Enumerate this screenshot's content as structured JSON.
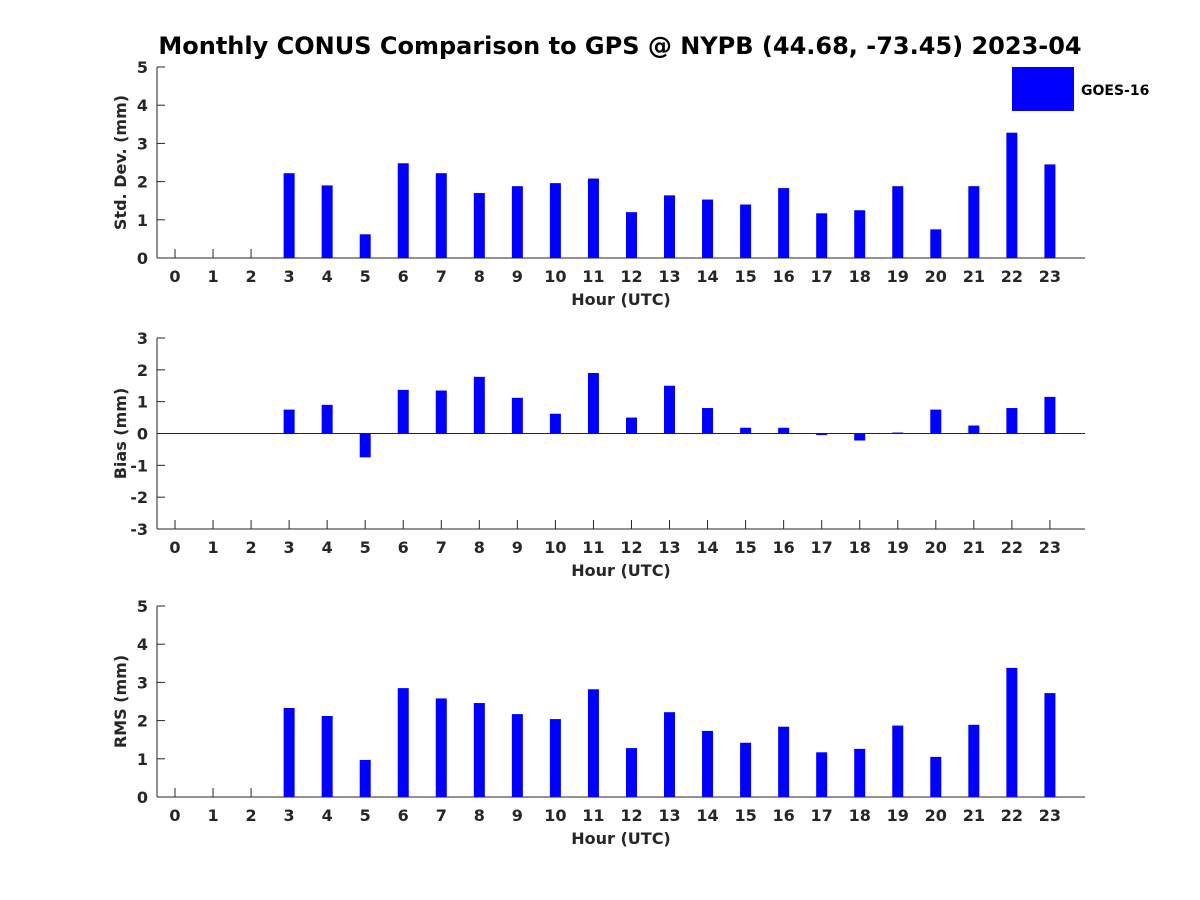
{
  "title": "Monthly CONUS Comparison to GPS @ NYPB (44.68, -73.45) 2023-04",
  "legend": {
    "label": "GOES-16",
    "color": "#0000FF",
    "position": "top-right"
  },
  "chart_data": [
    {
      "type": "bar",
      "xlabel": "Hour (UTC)",
      "ylabel": "Std. Dev. (mm)",
      "ylim": [
        0,
        5
      ],
      "yticks": [
        "0",
        "1",
        "2",
        "3",
        "4",
        "5"
      ],
      "categories": [
        "0",
        "1",
        "2",
        "3",
        "4",
        "5",
        "6",
        "7",
        "8",
        "9",
        "10",
        "11",
        "12",
        "13",
        "14",
        "15",
        "16",
        "17",
        "18",
        "19",
        "20",
        "21",
        "22",
        "23"
      ],
      "series": [
        {
          "name": "GOES-16",
          "color": "#0000FF",
          "values": [
            null,
            null,
            null,
            2.22,
            1.9,
            0.62,
            2.48,
            2.22,
            1.7,
            1.88,
            1.96,
            2.08,
            1.2,
            1.64,
            1.53,
            1.4,
            1.83,
            1.17,
            1.25,
            1.88,
            0.75,
            1.88,
            3.28,
            2.45
          ]
        }
      ]
    },
    {
      "type": "bar",
      "xlabel": "Hour (UTC)",
      "ylabel": "Bias (mm)",
      "ylim": [
        -3,
        3
      ],
      "yticks": [
        "-3",
        "-2",
        "-1",
        "0",
        "1",
        "2",
        "3"
      ],
      "categories": [
        "0",
        "1",
        "2",
        "3",
        "4",
        "5",
        "6",
        "7",
        "8",
        "9",
        "10",
        "11",
        "12",
        "13",
        "14",
        "15",
        "16",
        "17",
        "18",
        "19",
        "20",
        "21",
        "22",
        "23"
      ],
      "series": [
        {
          "name": "GOES-16",
          "color": "#0000FF",
          "values": [
            null,
            null,
            null,
            0.75,
            0.9,
            -0.75,
            1.37,
            1.35,
            1.78,
            1.12,
            0.62,
            1.9,
            0.5,
            1.5,
            0.8,
            0.18,
            0.18,
            -0.05,
            -0.22,
            0.03,
            0.75,
            0.25,
            0.8,
            1.15
          ]
        }
      ]
    },
    {
      "type": "bar",
      "xlabel": "Hour (UTC)",
      "ylabel": "RMS (mm)",
      "ylim": [
        0,
        5
      ],
      "yticks": [
        "0",
        "1",
        "2",
        "3",
        "4",
        "5"
      ],
      "categories": [
        "0",
        "1",
        "2",
        "3",
        "4",
        "5",
        "6",
        "7",
        "8",
        "9",
        "10",
        "11",
        "12",
        "13",
        "14",
        "15",
        "16",
        "17",
        "18",
        "19",
        "20",
        "21",
        "22",
        "23"
      ],
      "series": [
        {
          "name": "GOES-16",
          "color": "#0000FF",
          "values": [
            null,
            null,
            null,
            2.33,
            2.12,
            0.97,
            2.85,
            2.58,
            2.46,
            2.17,
            2.04,
            2.82,
            1.28,
            2.22,
            1.73,
            1.42,
            1.84,
            1.17,
            1.26,
            1.87,
            1.05,
            1.89,
            3.38,
            2.72
          ]
        }
      ]
    }
  ]
}
